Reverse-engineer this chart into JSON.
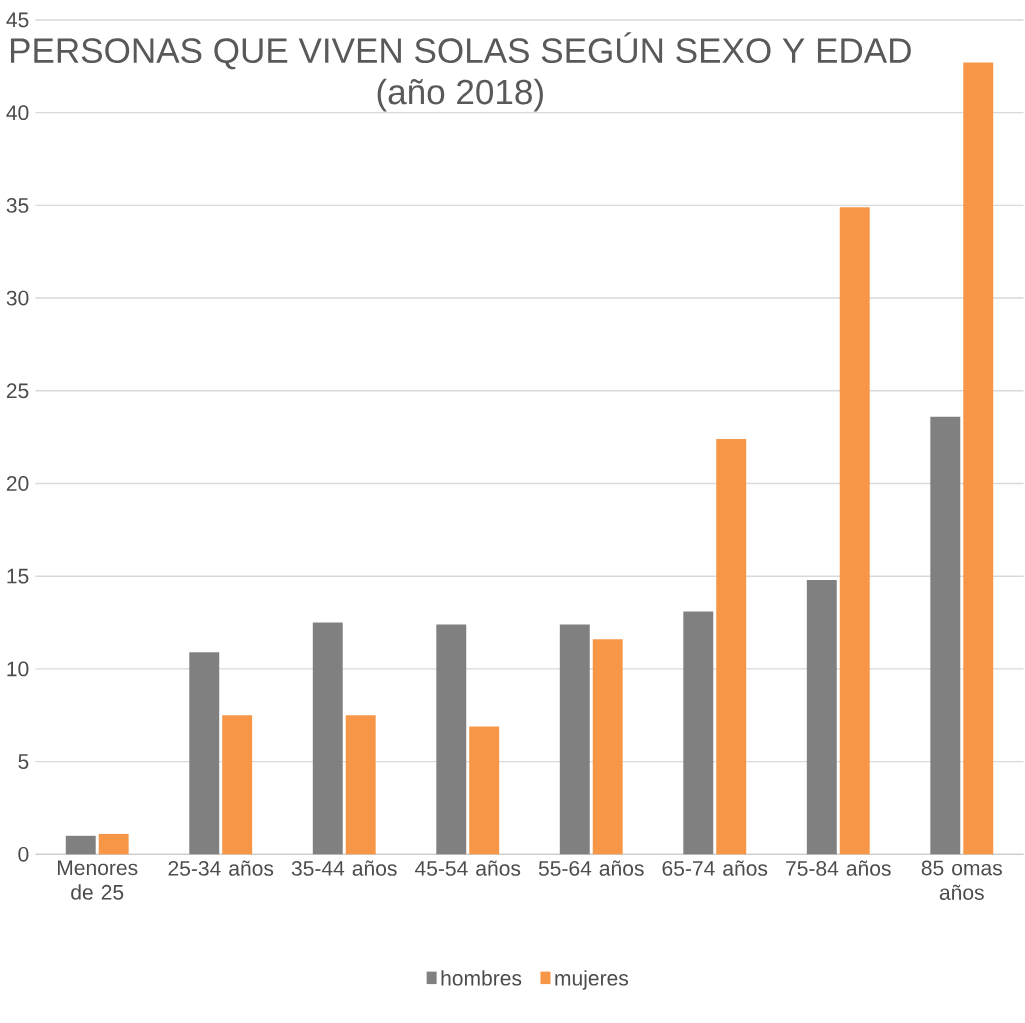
{
  "chart_data": {
    "type": "bar",
    "title": "PERSONAS QUE VIVEN SOLAS SEGÚN SEXO Y EDAD",
    "subtitle": "(año 2018)",
    "categories": [
      "Menores de 25",
      "25-34 años",
      "35-44 años",
      "45-54 años",
      "55-64 años",
      "65-74 años",
      "75-84 años",
      "85 omas años"
    ],
    "series": [
      {
        "name": "hombres",
        "color": "#808080",
        "values": [
          1.0,
          10.9,
          12.5,
          12.4,
          12.4,
          13.1,
          14.8,
          23.6
        ]
      },
      {
        "name": "mujeres",
        "color": "#f79646",
        "values": [
          1.1,
          7.5,
          7.5,
          6.9,
          11.6,
          22.4,
          34.9,
          42.7
        ]
      }
    ],
    "ylim": [
      0,
      45
    ],
    "yticks": [
      0,
      5,
      10,
      15,
      20,
      25,
      30,
      35,
      40,
      45
    ],
    "grid": "y",
    "legend": "bottom"
  }
}
